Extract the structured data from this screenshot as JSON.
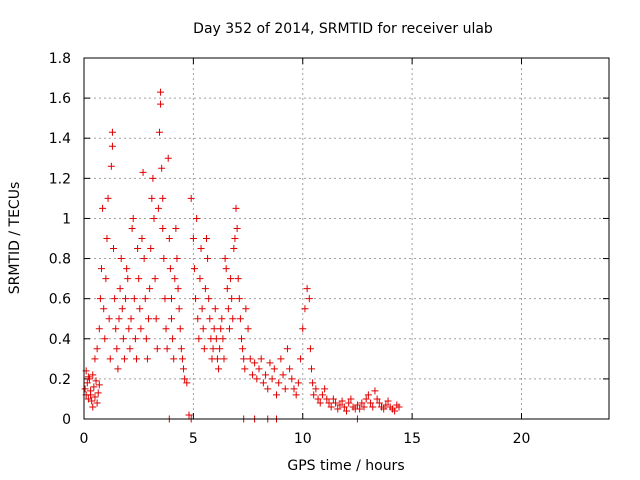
{
  "chart_data": {
    "type": "scatter",
    "title": "Day 352 of 2014, SRMTID for receiver ulab",
    "xlabel": "GPS time / hours",
    "ylabel": "SRMTID / TECUs",
    "xlim": [
      0,
      24
    ],
    "ylim": [
      0,
      1.8
    ],
    "x_ticks": [
      0,
      5,
      10,
      15,
      20
    ],
    "x_tick_labels": [
      "0",
      "5",
      "10",
      "15",
      "20"
    ],
    "y_ticks": [
      0,
      0.2,
      0.4,
      0.6,
      0.8,
      1.0,
      1.2,
      1.4,
      1.6,
      1.8
    ],
    "y_tick_labels": [
      "0",
      "0.2",
      "0.4",
      "0.6",
      "0.8",
      "1",
      "1.2",
      "1.4",
      "1.6",
      "1.8"
    ],
    "grid": true,
    "marker": "+",
    "series": [
      {
        "name": "SRMTID",
        "color": "#e00000",
        "x": [
          0.05,
          0.1,
          0.15,
          0.2,
          0.25,
          0.3,
          0.35,
          0.4,
          0.45,
          0.5,
          0.55,
          0.6,
          0.65,
          0.7,
          0.1,
          0.2,
          0.3,
          0.4,
          0.5,
          0.6,
          0.7,
          0.75,
          0.8,
          0.85,
          0.9,
          0.95,
          1.0,
          1.05,
          1.1,
          1.15,
          1.2,
          1.25,
          1.3,
          1.3,
          1.35,
          1.4,
          1.45,
          1.5,
          1.55,
          1.6,
          1.65,
          1.7,
          1.75,
          1.8,
          1.85,
          1.9,
          1.95,
          2.0,
          2.05,
          2.1,
          2.15,
          2.2,
          2.25,
          2.3,
          2.35,
          2.4,
          2.45,
          2.5,
          2.55,
          2.6,
          2.65,
          2.7,
          2.75,
          2.8,
          2.85,
          2.9,
          2.95,
          3.0,
          3.05,
          3.1,
          3.15,
          3.2,
          3.25,
          3.3,
          3.35,
          3.4,
          3.45,
          3.5,
          3.5,
          3.55,
          3.6,
          3.6,
          3.65,
          3.7,
          3.75,
          3.8,
          3.85,
          3.9,
          3.95,
          4.0,
          4.0,
          4.05,
          4.1,
          4.15,
          4.2,
          4.25,
          4.3,
          4.35,
          4.4,
          4.45,
          4.5,
          4.55,
          4.6,
          4.7,
          4.8,
          4.9,
          5.0,
          5.05,
          5.1,
          5.15,
          5.2,
          5.25,
          5.3,
          5.35,
          5.4,
          5.45,
          5.5,
          5.55,
          5.6,
          5.65,
          5.7,
          5.75,
          5.8,
          5.85,
          5.9,
          5.95,
          6.0,
          6.05,
          6.1,
          6.15,
          6.2,
          6.25,
          6.3,
          6.35,
          6.4,
          6.45,
          6.5,
          6.55,
          6.6,
          6.65,
          6.7,
          6.75,
          6.8,
          6.85,
          6.9,
          6.95,
          7.0,
          7.05,
          7.1,
          7.15,
          7.2,
          7.25,
          7.3,
          7.35,
          7.4,
          7.5,
          7.6,
          7.7,
          7.8,
          7.9,
          8.0,
          8.1,
          8.2,
          8.3,
          8.4,
          8.5,
          8.6,
          8.7,
          8.8,
          8.9,
          9.0,
          9.1,
          9.2,
          9.3,
          9.4,
          9.5,
          9.6,
          9.7,
          9.8,
          9.9,
          10.0,
          10.1,
          10.2,
          10.3,
          10.35,
          10.4,
          10.45,
          10.5,
          10.6,
          10.7,
          10.8,
          10.9,
          11.0,
          11.1,
          11.2,
          11.3,
          11.4,
          11.5,
          11.6,
          11.7,
          11.8,
          11.9,
          12.0,
          12.1,
          12.2,
          12.3,
          12.4,
          12.5,
          12.6,
          12.7,
          12.8,
          12.9,
          13.0,
          13.1,
          13.2,
          13.3,
          13.4,
          13.5,
          13.6,
          13.7,
          13.8,
          13.9,
          14.0,
          14.1,
          14.2,
          14.3,
          14.4,
          3.9,
          4.9,
          7.3,
          7.8,
          8.4,
          8.8,
          12.5
        ],
        "y": [
          0.15,
          0.12,
          0.18,
          0.1,
          0.2,
          0.14,
          0.09,
          0.22,
          0.16,
          0.11,
          0.19,
          0.08,
          0.13,
          0.17,
          0.24,
          0.21,
          0.12,
          0.06,
          0.3,
          0.35,
          0.45,
          0.6,
          0.75,
          1.05,
          0.55,
          0.4,
          0.7,
          0.9,
          1.1,
          0.5,
          0.3,
          1.26,
          1.43,
          1.36,
          0.85,
          0.6,
          0.45,
          0.35,
          0.25,
          0.5,
          0.65,
          0.8,
          0.55,
          0.4,
          0.3,
          0.6,
          0.75,
          0.7,
          0.45,
          0.35,
          0.5,
          0.95,
          1.0,
          0.6,
          0.4,
          0.3,
          0.85,
          0.7,
          0.55,
          0.45,
          0.9,
          1.23,
          0.8,
          0.6,
          0.4,
          0.3,
          0.5,
          0.65,
          0.85,
          1.1,
          1.2,
          1.0,
          0.7,
          0.5,
          0.35,
          1.05,
          1.43,
          1.63,
          1.57,
          1.25,
          1.1,
          0.95,
          0.8,
          0.6,
          0.45,
          0.35,
          1.3,
          0.9,
          0.75,
          0.6,
          0.5,
          0.4,
          0.3,
          0.7,
          0.95,
          0.8,
          0.65,
          0.55,
          0.45,
          0.35,
          0.3,
          0.25,
          0.2,
          0.18,
          0.02,
          1.1,
          0.9,
          0.75,
          0.6,
          1.0,
          0.5,
          0.4,
          0.7,
          0.85,
          0.55,
          0.45,
          0.35,
          0.65,
          0.9,
          0.8,
          0.6,
          0.5,
          0.4,
          0.3,
          0.35,
          0.45,
          0.55,
          0.4,
          0.3,
          0.25,
          0.35,
          0.45,
          0.5,
          0.4,
          0.3,
          0.8,
          0.75,
          0.65,
          0.55,
          0.45,
          0.7,
          0.6,
          0.5,
          0.85,
          0.9,
          1.05,
          0.95,
          0.7,
          0.6,
          0.5,
          0.4,
          0.35,
          0.3,
          0.25,
          0.55,
          0.45,
          0.3,
          0.22,
          0.28,
          0.2,
          0.25,
          0.3,
          0.18,
          0.22,
          0.15,
          0.28,
          0.2,
          0.25,
          0.12,
          0.18,
          0.3,
          0.22,
          0.15,
          0.35,
          0.25,
          0.2,
          0.15,
          0.12,
          0.18,
          0.3,
          0.45,
          0.55,
          0.65,
          0.6,
          0.35,
          0.25,
          0.18,
          0.12,
          0.15,
          0.1,
          0.08,
          0.12,
          0.15,
          0.1,
          0.08,
          0.06,
          0.1,
          0.08,
          0.05,
          0.07,
          0.09,
          0.06,
          0.04,
          0.08,
          0.1,
          0.06,
          0.05,
          0.07,
          0.05,
          0.08,
          0.06,
          0.1,
          0.12,
          0.08,
          0.06,
          0.14,
          0.1,
          0.08,
          0.06,
          0.05,
          0.07,
          0.09,
          0.06,
          0.05,
          0.04,
          0.07,
          0.06,
          0.0,
          0.0,
          0.0,
          0.0,
          0.0,
          0.0,
          0.0
        ]
      }
    ]
  }
}
